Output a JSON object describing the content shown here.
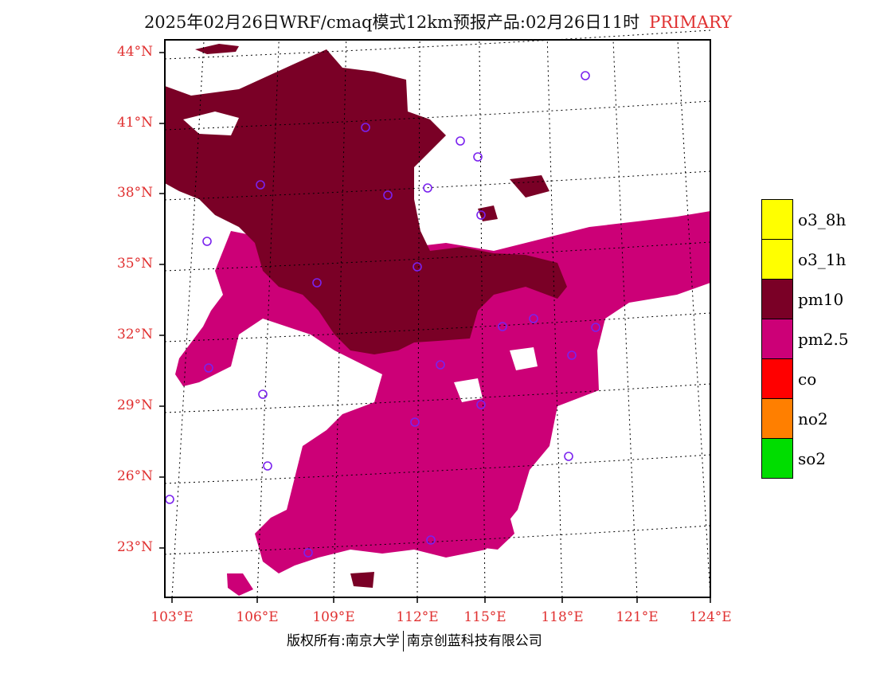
{
  "title": {
    "text": "2025年02月26日WRF/cmaq模式12km预报产品:02月26日11时",
    "tag": "PRIMARY"
  },
  "axes": {
    "lat_labels": [
      "44°N",
      "41°N",
      "38°N",
      "35°N",
      "32°N",
      "29°N",
      "26°N",
      "23°N"
    ],
    "lon_labels": [
      "103°E",
      "106°E",
      "109°E",
      "112°E",
      "115°E",
      "118°E",
      "121°E",
      "124°E"
    ]
  },
  "legend": [
    {
      "label": "o3_8h",
      "color": "#ffff00"
    },
    {
      "label": "o3_1h",
      "color": "#ffff00"
    },
    {
      "label": "pm10",
      "color": "#7a0026"
    },
    {
      "label": "pm2.5",
      "color": "#cc0077"
    },
    {
      "label": "co",
      "color": "#ff0000"
    },
    {
      "label": "no2",
      "color": "#ff7f00"
    },
    {
      "label": "so2",
      "color": "#00dd00"
    }
  ],
  "colors": {
    "pm10": "#7a0026",
    "pm25": "#cc0077",
    "station": "#7a22ee",
    "axis_label": "#e03030"
  },
  "footer": {
    "left": "版权所有:南京大学",
    "right": "南京创蓝科技有限公司"
  }
}
